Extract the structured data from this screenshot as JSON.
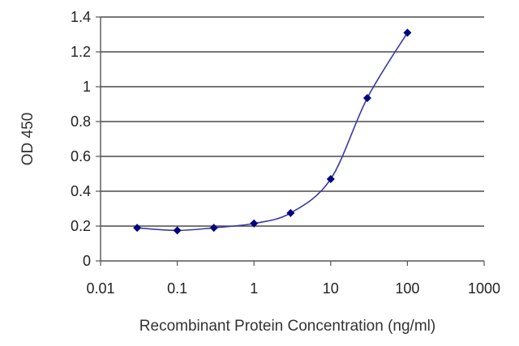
{
  "chart_data": {
    "type": "scatter",
    "title": "",
    "xlabel": "Recombinant Protein Concentration (ng/ml)",
    "ylabel": "OD 450",
    "xscale": "log",
    "xlim": [
      0.01,
      1000
    ],
    "ylim": [
      0,
      1.4
    ],
    "grid": "horizontal",
    "legend": "none",
    "x_ticks": [
      "0.01",
      "0.1",
      "1",
      "10",
      "100",
      "1000"
    ],
    "y_ticks": [
      "0",
      "0.2",
      "0.4",
      "0.6",
      "0.8",
      "1",
      "1.2",
      "1.4"
    ],
    "series": [
      {
        "x": [
          0.03,
          0.1,
          0.3,
          1,
          3,
          10,
          30,
          100
        ],
        "y": [
          0.19,
          0.175,
          0.19,
          0.215,
          0.275,
          0.47,
          0.935,
          1.31
        ]
      }
    ],
    "colors": {
      "line": "#3a3aa8",
      "marker": "#000080",
      "grid": "#4a4a4a",
      "axis": "#555555",
      "text": "#222222"
    }
  }
}
